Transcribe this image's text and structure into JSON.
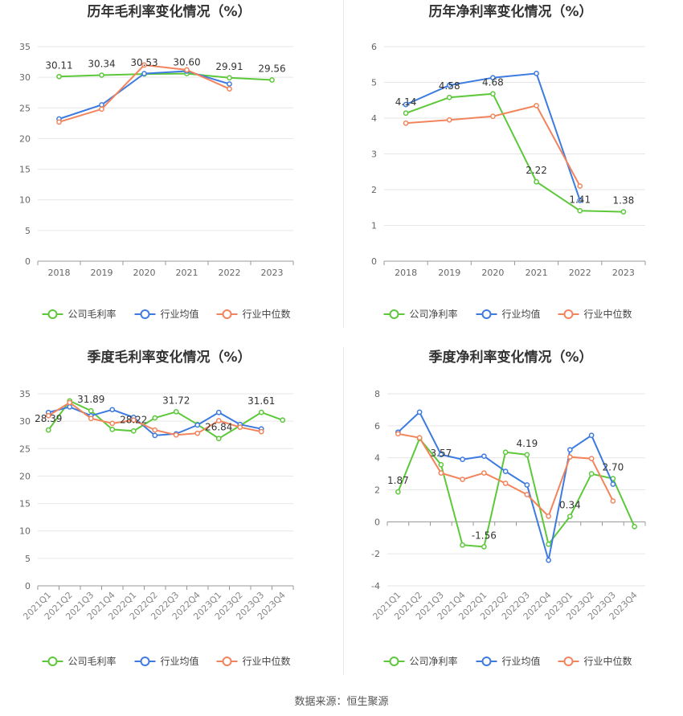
{
  "chart_data": [
    {
      "type": "line",
      "title": "历年毛利率变化情况（%）",
      "categories": [
        "2018",
        "2019",
        "2020",
        "2021",
        "2022",
        "2023"
      ],
      "ylim": [
        0,
        35
      ],
      "yticks": [
        0,
        5,
        10,
        15,
        20,
        25,
        30,
        35
      ],
      "grid": true,
      "legend_position": "bottom",
      "series": [
        {
          "name": "公司毛利率",
          "color": "#5cc83a",
          "values": [
            30.11,
            30.34,
            30.53,
            30.6,
            29.91,
            29.56
          ],
          "labels": [
            "30.11",
            "30.34",
            "30.53",
            "30.60",
            "29.91",
            "29.56"
          ]
        },
        {
          "name": "行业均值",
          "color": "#3d7be0",
          "values": [
            23.2,
            25.5,
            30.6,
            31.0,
            28.9,
            null
          ]
        },
        {
          "name": "行业中位数",
          "color": "#f2845c",
          "values": [
            22.7,
            24.8,
            32.0,
            31.2,
            28.1,
            null
          ]
        }
      ]
    },
    {
      "type": "line",
      "title": "历年净利率变化情况（%）",
      "categories": [
        "2018",
        "2019",
        "2020",
        "2021",
        "2022",
        "2023"
      ],
      "ylim": [
        0,
        6
      ],
      "yticks": [
        0,
        1,
        2,
        3,
        4,
        5,
        6
      ],
      "grid": true,
      "legend_position": "bottom",
      "series": [
        {
          "name": "公司净利率",
          "color": "#5cc83a",
          "values": [
            4.14,
            4.58,
            4.68,
            2.22,
            1.41,
            1.38
          ],
          "labels": [
            "4.14",
            "4.58",
            "4.68",
            "2.22",
            "1.41",
            "1.38"
          ]
        },
        {
          "name": "行业均值",
          "color": "#3d7be0",
          "values": [
            4.38,
            4.92,
            5.13,
            5.25,
            1.7,
            null
          ]
        },
        {
          "name": "行业中位数",
          "color": "#f2845c",
          "values": [
            3.86,
            3.95,
            4.05,
            4.35,
            2.1,
            null
          ]
        }
      ]
    },
    {
      "type": "line",
      "title": "季度毛利率变化情况（%）",
      "categories": [
        "2021Q1",
        "2021Q2",
        "2021Q3",
        "2021Q4",
        "2022Q1",
        "2022Q2",
        "2022Q3",
        "2022Q4",
        "2023Q1",
        "2023Q2",
        "2023Q3",
        "2023Q4"
      ],
      "ylim": [
        0,
        35
      ],
      "yticks": [
        0,
        5,
        10,
        15,
        20,
        25,
        30,
        35
      ],
      "grid": true,
      "rotate_xlabels": true,
      "legend_position": "bottom",
      "series": [
        {
          "name": "公司毛利率",
          "color": "#5cc83a",
          "values": [
            28.39,
            33.7,
            31.89,
            28.5,
            28.22,
            30.6,
            31.72,
            29.4,
            26.84,
            29.2,
            31.61,
            30.2
          ],
          "labels": [
            "28.39",
            null,
            "31.89",
            null,
            "28.22",
            null,
            "31.72",
            null,
            "26.84",
            null,
            "31.61",
            null
          ]
        },
        {
          "name": "行业均值",
          "color": "#3d7be0",
          "values": [
            31.6,
            32.6,
            31.0,
            32.1,
            30.7,
            27.4,
            27.7,
            29.3,
            31.6,
            29.4,
            28.6,
            null
          ]
        },
        {
          "name": "行业中位数",
          "color": "#f2845c",
          "values": [
            31.0,
            33.4,
            30.5,
            29.6,
            30.2,
            28.4,
            27.5,
            27.8,
            30.1,
            28.9,
            28.1,
            null
          ]
        }
      ]
    },
    {
      "type": "line",
      "title": "季度净利率变化情况（%）",
      "categories": [
        "2021Q1",
        "2021Q2",
        "2021Q3",
        "2021Q4",
        "2022Q1",
        "2022Q2",
        "2022Q3",
        "2022Q4",
        "2023Q1",
        "2023Q2",
        "2023Q3",
        "2023Q4"
      ],
      "ylim": [
        -4,
        8
      ],
      "yticks": [
        -4,
        -2,
        0,
        2,
        4,
        6,
        8
      ],
      "grid": true,
      "rotate_xlabels": true,
      "legend_position": "bottom",
      "series": [
        {
          "name": "公司净利率",
          "color": "#5cc83a",
          "values": [
            1.87,
            5.2,
            3.57,
            -1.45,
            -1.56,
            4.35,
            4.19,
            -1.4,
            0.34,
            3.0,
            2.7,
            -0.3
          ],
          "labels": [
            "1.87",
            null,
            "3.57",
            null,
            "-1.56",
            null,
            "4.19",
            null,
            "0.34",
            null,
            "2.70",
            null
          ]
        },
        {
          "name": "行业均值",
          "color": "#3d7be0",
          "values": [
            5.6,
            6.85,
            4.2,
            3.9,
            4.1,
            3.15,
            2.3,
            -2.4,
            4.5,
            5.4,
            2.35,
            null
          ]
        },
        {
          "name": "行业中位数",
          "color": "#f2845c",
          "values": [
            5.5,
            5.25,
            3.05,
            2.65,
            3.05,
            2.4,
            1.7,
            0.35,
            4.05,
            3.95,
            1.3,
            null
          ]
        }
      ]
    }
  ],
  "footer": "数据来源：恒生聚源"
}
